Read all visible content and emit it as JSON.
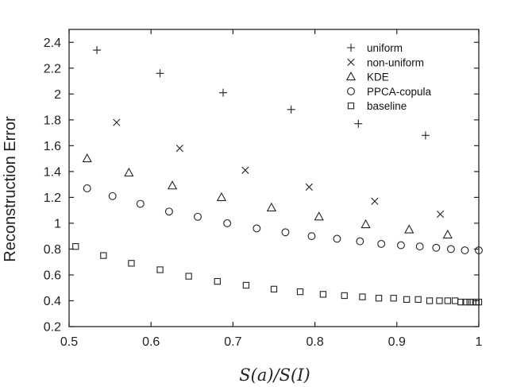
{
  "chart_data": {
    "type": "scatter",
    "xlabel": "S(a)/S(I)",
    "ylabel": "Reconstruction  Error",
    "xlim": [
      0.5,
      1.0
    ],
    "ylim": [
      0.2,
      2.5
    ],
    "x_ticks": [
      0.5,
      0.6,
      0.7,
      0.8,
      0.9,
      1.0
    ],
    "x_tick_labels": [
      "0.5",
      "0.6",
      "0.7",
      "0.8",
      "0.9",
      "1"
    ],
    "y_ticks": [
      0.2,
      0.4,
      0.6,
      0.8,
      1.0,
      1.2,
      1.4,
      1.6,
      1.8,
      2.0,
      2.2,
      2.4
    ],
    "y_tick_labels": [
      "0.2",
      "0.4",
      "0.6",
      "0.8",
      "1",
      "1.2",
      "1.4",
      "1.6",
      "1.8",
      "2",
      "2.2",
      "2.4"
    ],
    "legend_position": "top-right",
    "grid": false,
    "series": [
      {
        "name": "uniform",
        "marker": "plus",
        "x": [
          0.534,
          0.611,
          0.688,
          0.771,
          0.853,
          0.935
        ],
        "y": [
          2.34,
          2.16,
          2.01,
          1.88,
          1.77,
          1.68
        ]
      },
      {
        "name": "non-uniform",
        "marker": "x",
        "x": [
          0.558,
          0.635,
          0.715,
          0.793,
          0.873,
          0.953
        ],
        "y": [
          1.78,
          1.58,
          1.41,
          1.28,
          1.17,
          1.07
        ]
      },
      {
        "name": "KDE",
        "marker": "triangle",
        "x": [
          0.522,
          0.573,
          0.626,
          0.686,
          0.747,
          0.805,
          0.862,
          0.915,
          0.962
        ],
        "y": [
          1.5,
          1.39,
          1.29,
          1.2,
          1.12,
          1.05,
          0.99,
          0.95,
          0.91
        ]
      },
      {
        "name": "PPCA-copula",
        "marker": "circle",
        "x": [
          0.522,
          0.553,
          0.587,
          0.622,
          0.657,
          0.693,
          0.729,
          0.764,
          0.796,
          0.827,
          0.855,
          0.881,
          0.905,
          0.928,
          0.948,
          0.966,
          0.983,
          1.0
        ],
        "y": [
          1.27,
          1.21,
          1.15,
          1.09,
          1.05,
          1.0,
          0.96,
          0.93,
          0.9,
          0.88,
          0.86,
          0.84,
          0.83,
          0.82,
          0.81,
          0.8,
          0.79,
          0.79
        ]
      },
      {
        "name": "baseline",
        "marker": "square",
        "x": [
          0.508,
          0.542,
          0.576,
          0.611,
          0.646,
          0.681,
          0.716,
          0.75,
          0.782,
          0.81,
          0.836,
          0.858,
          0.878,
          0.896,
          0.912,
          0.926,
          0.94,
          0.952,
          0.962,
          0.971,
          0.978,
          0.984,
          0.989,
          0.993,
          0.997,
          1.0
        ],
        "y": [
          0.82,
          0.75,
          0.69,
          0.64,
          0.59,
          0.55,
          0.52,
          0.49,
          0.47,
          0.45,
          0.44,
          0.43,
          0.42,
          0.42,
          0.41,
          0.41,
          0.4,
          0.4,
          0.4,
          0.4,
          0.39,
          0.39,
          0.39,
          0.39,
          0.39,
          0.39
        ]
      }
    ]
  }
}
